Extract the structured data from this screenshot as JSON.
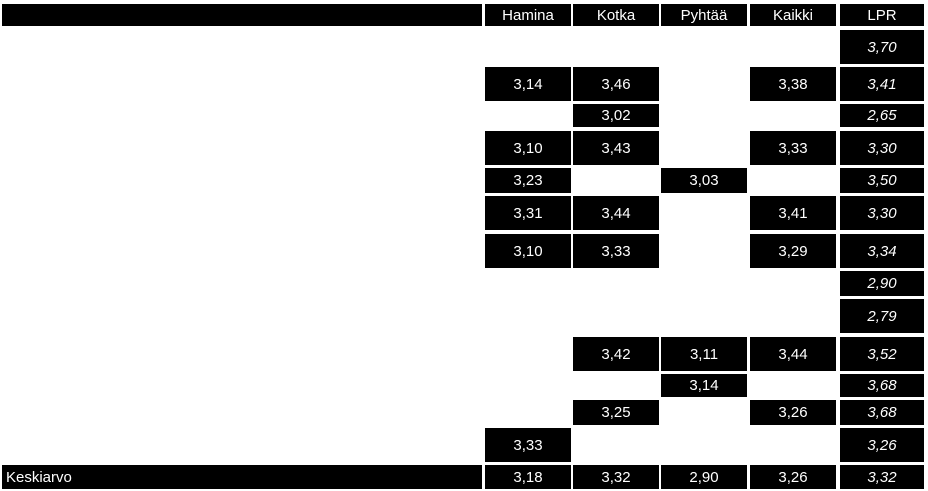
{
  "table": {
    "header": [
      "Hamina",
      "Kotka",
      "Pyhtää",
      "Kaikki",
      "LPR"
    ],
    "rows": [
      [
        null,
        null,
        null,
        null,
        "3,70"
      ],
      [
        "3,14",
        "3,46",
        null,
        "3,38",
        "3,41"
      ],
      [
        null,
        "3,02",
        null,
        null,
        "2,65"
      ],
      [
        "3,10",
        "3,43",
        null,
        "3,33",
        "3,30"
      ],
      [
        "3,23",
        null,
        "3,03",
        null,
        "3,50"
      ],
      [
        "3,31",
        "3,44",
        null,
        "3,41",
        "3,30"
      ],
      [
        "3,10",
        "3,33",
        null,
        "3,29",
        "3,34"
      ],
      [
        null,
        null,
        null,
        null,
        "2,90"
      ],
      [
        null,
        null,
        null,
        null,
        "2,79"
      ],
      [
        null,
        "3,42",
        "3,11",
        "3,44",
        "3,52"
      ],
      [
        null,
        null,
        "3,14",
        null,
        "3,68"
      ],
      [
        null,
        "3,25",
        null,
        "3,26",
        "3,68"
      ],
      [
        "3,33",
        null,
        null,
        null,
        "3,26"
      ]
    ],
    "footer": {
      "label": "Keskiarvo",
      "values": [
        "3,18",
        "3,32",
        "2,90",
        "3,26",
        "3,32"
      ]
    }
  }
}
